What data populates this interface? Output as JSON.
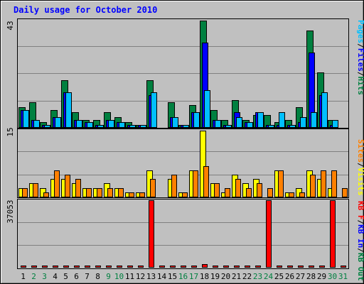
{
  "chart_data": [
    {
      "type": "bar",
      "title": "Daily usage for October 2010",
      "ymax_label": "43",
      "ylim": [
        0,
        43
      ],
      "grid": true,
      "legend": "right-vertical",
      "legend_entries": [
        "Pages",
        "Files",
        "Hits"
      ],
      "legend_separator": "/",
      "categories": [
        "1",
        "2",
        "3",
        "4",
        "5",
        "6",
        "7",
        "8",
        "9",
        "10",
        "11",
        "12",
        "13",
        "14",
        "15",
        "16",
        "17",
        "18",
        "19",
        "20",
        "21",
        "22",
        "23",
        "24",
        "25",
        "26",
        "27",
        "28",
        "29",
        "30",
        "31"
      ],
      "weekend_days": [
        2,
        3,
        9,
        10,
        16,
        17,
        23,
        24,
        30,
        31
      ],
      "series": [
        {
          "name": "Hits",
          "color": "#008040",
          "values": [
            8,
            10,
            2,
            7,
            19,
            6,
            3,
            3,
            6,
            4,
            2,
            1,
            19,
            0,
            10,
            1,
            9,
            43,
            7,
            3,
            11,
            3,
            5,
            5,
            2,
            3,
            8,
            39,
            22,
            3,
            0
          ]
        },
        {
          "name": "Files",
          "color": "#0000ff",
          "values": [
            7,
            3,
            1,
            4,
            14,
            3,
            2,
            1,
            3,
            2,
            1,
            1,
            13,
            0,
            4,
            1,
            6,
            34,
            3,
            1,
            6,
            2,
            6,
            1,
            1,
            1,
            2,
            30,
            13,
            1,
            0
          ]
        },
        {
          "name": "Pages",
          "color": "#00bfff",
          "values": [
            7,
            3,
            1,
            4,
            14,
            3,
            2,
            1,
            3,
            2,
            1,
            1,
            14,
            0,
            4,
            1,
            6,
            15,
            3,
            1,
            4,
            2,
            6,
            1,
            6,
            1,
            4,
            6,
            14,
            3,
            0
          ]
        }
      ]
    },
    {
      "type": "bar",
      "ymax_label": "15",
      "ylim": [
        0,
        15
      ],
      "grid": true,
      "legend": "right-vertical",
      "legend_entries": [
        "Sites",
        "Visits"
      ],
      "legend_separator": "/",
      "series": [
        {
          "name": "Visits",
          "color": "#ffff00",
          "values": [
            2,
            3,
            2,
            4,
            4,
            3,
            2,
            2,
            3,
            2,
            1,
            1,
            6,
            0,
            4,
            1,
            6,
            15,
            3,
            1,
            5,
            3,
            4,
            0,
            6,
            1,
            2,
            6,
            4,
            2,
            0
          ]
        },
        {
          "name": "Sites",
          "color": "#ff8000",
          "values": [
            2,
            3,
            1,
            6,
            5,
            4,
            2,
            2,
            2,
            2,
            1,
            1,
            4,
            0,
            5,
            1,
            6,
            7,
            3,
            2,
            4,
            2,
            3,
            2,
            6,
            1,
            1,
            5,
            6,
            6,
            2
          ]
        }
      ]
    },
    {
      "type": "bar",
      "ymax_label": "37053",
      "ylim": [
        0,
        37053
      ],
      "grid": true,
      "legend": "right-vertical",
      "legend_entries": [
        "KB F",
        "KB In",
        "KB Out"
      ],
      "legend_separator": "/",
      "series": [
        {
          "name": "KB F",
          "color": "#ff0000",
          "values": [
            400,
            400,
            400,
            400,
            400,
            400,
            400,
            400,
            400,
            400,
            400,
            400,
            37053,
            400,
            400,
            400,
            400,
            1600,
            400,
            400,
            400,
            400,
            400,
            37053,
            400,
            400,
            400,
            400,
            400,
            37053,
            400
          ]
        }
      ]
    }
  ],
  "colors": {
    "background": "#c0c0c0",
    "title": "#0000ff",
    "grid": "#808080",
    "day_label": "#000000",
    "weekend_label": "#008040",
    "legend_hits": "#008040",
    "legend_files": "#0000ff",
    "legend_pages": "#00bfff",
    "legend_visits": "#ffff00",
    "legend_sites": "#ff8000",
    "legend_kbf": "#ff0000",
    "legend_kbin": "#0000ff",
    "legend_kbout": "#008040",
    "legend_slash": "#000000"
  }
}
